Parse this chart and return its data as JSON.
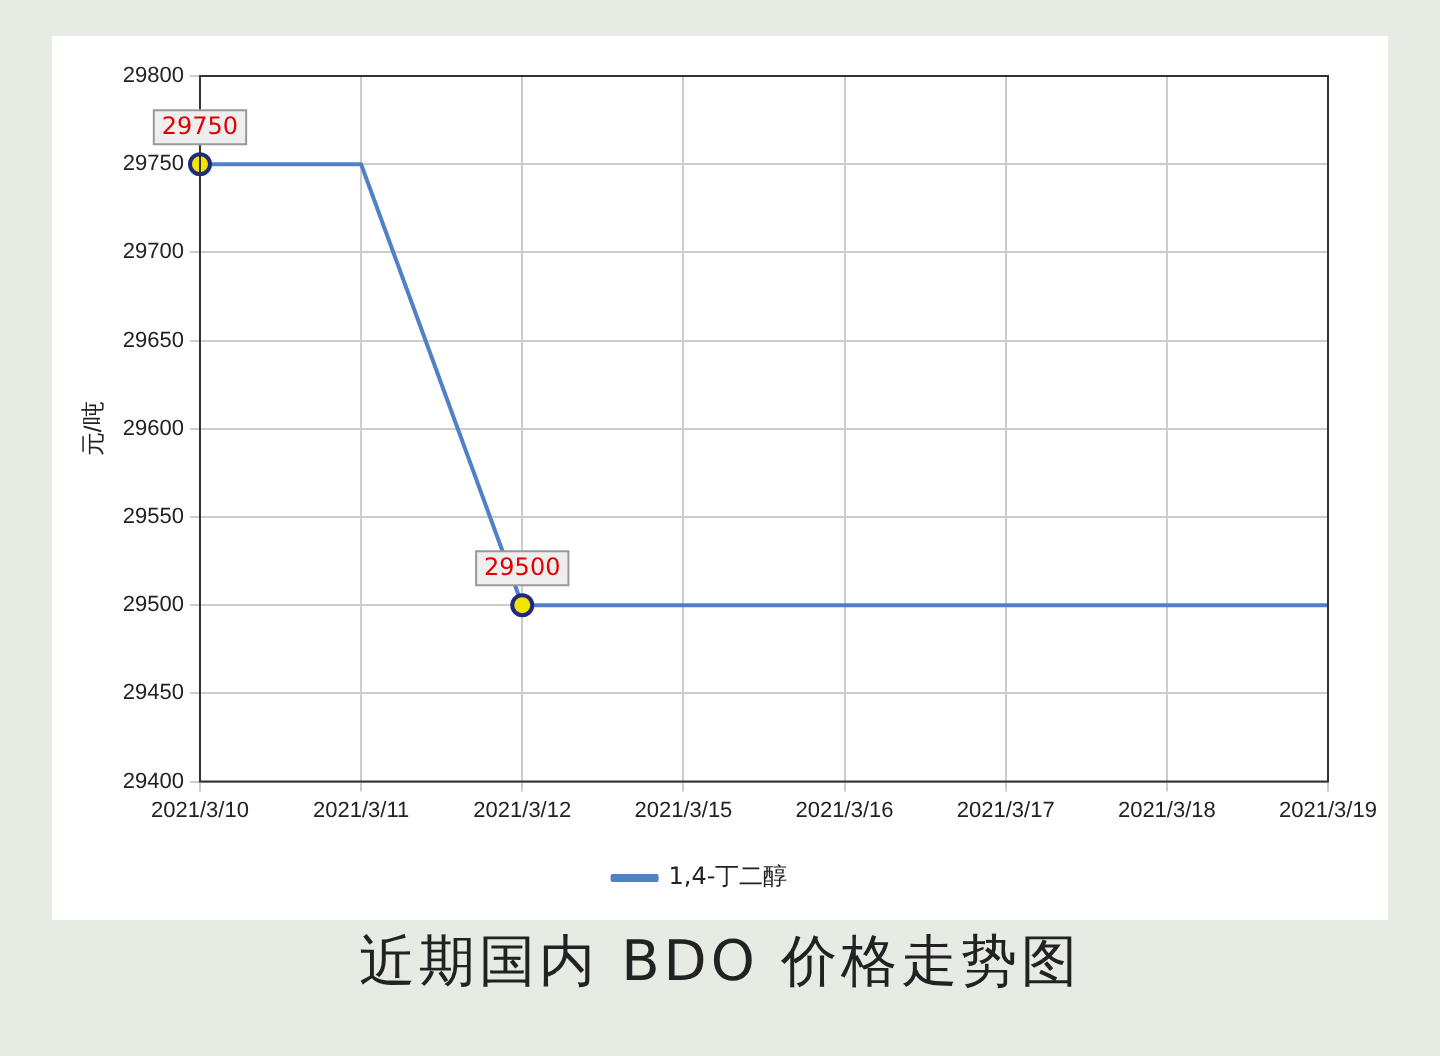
{
  "chart_data": {
    "type": "line",
    "title": "近期国内 BDO 价格走势图",
    "ylabel": "元/吨",
    "categories": [
      "2021/3/10",
      "2021/3/11",
      "2021/3/12",
      "2021/3/15",
      "2021/3/16",
      "2021/3/17",
      "2021/3/18",
      "2021/3/19"
    ],
    "series": [
      {
        "name": "1,4-丁二醇",
        "color": "#4f81c7",
        "values": [
          29750,
          29750,
          29500,
          29500,
          29500,
          29500,
          29500,
          29500
        ],
        "value_labels": [
          "29750",
          null,
          "29500",
          null,
          null,
          null,
          null,
          null
        ]
      }
    ],
    "ylim": [
      29400,
      29800
    ],
    "yticks": [
      29400,
      29450,
      29500,
      29550,
      29600,
      29650,
      29700,
      29750,
      29800
    ],
    "grid": true,
    "legend": "bottom",
    "line_style": "solid"
  }
}
